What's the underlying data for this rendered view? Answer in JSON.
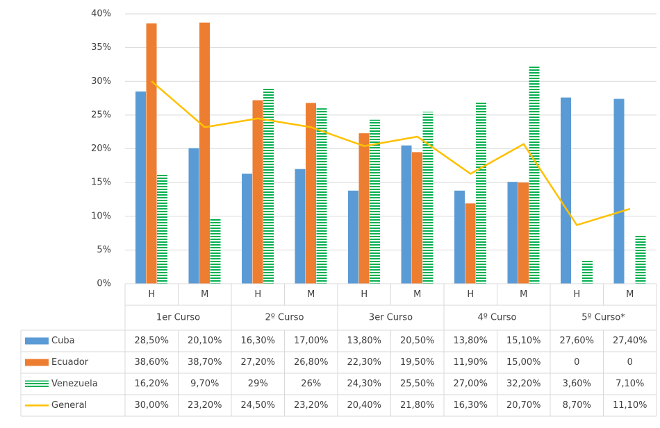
{
  "chart_data": {
    "type": "bar",
    "categories": [
      "H",
      "M",
      "H",
      "M",
      "H",
      "M",
      "H",
      "M",
      "H",
      "M"
    ],
    "groups": [
      "1er Curso",
      "2º Curso",
      "3er Curso",
      "4º Curso",
      "5º Curso*"
    ],
    "series": [
      {
        "name": "Cuba",
        "type": "bar",
        "color": "#5b9bd5",
        "values": [
          28.5,
          20.1,
          16.3,
          17,
          13.8,
          20.5,
          13.8,
          15.1,
          27.6,
          27.4
        ],
        "value_labels": [
          "28,50%",
          "20,10%",
          "16,30%",
          "17,00%",
          "13,80%",
          "20,50%",
          "13,80%",
          "15,10%",
          "27,60%",
          "27,40%"
        ]
      },
      {
        "name": "Ecuador",
        "type": "bar",
        "color": "#ed7d31",
        "values": [
          38.6,
          38.7,
          27.2,
          26.8,
          22.3,
          19.5,
          11.9,
          15,
          0,
          0
        ],
        "value_labels": [
          "38,60%",
          "38,70%",
          "27,20%",
          "26,80%",
          "22,30%",
          "19,50%",
          "11,90%",
          "15,00%",
          "0",
          "0"
        ]
      },
      {
        "name": "Venezuela",
        "type": "bar",
        "color": "#00b050",
        "pattern": "horizontal-stripes",
        "values": [
          16.2,
          9.7,
          29,
          26,
          24.3,
          25.5,
          27,
          32.2,
          3.6,
          7.1
        ],
        "value_labels": [
          "16,20%",
          "9,70%",
          "29%",
          "26%",
          "24,30%",
          "25,50%",
          "27,00%",
          "32,20%",
          "3,60%",
          "7,10%"
        ]
      },
      {
        "name": "General",
        "type": "line",
        "color": "#ffc000",
        "values": [
          30,
          23.2,
          24.5,
          23.2,
          20.4,
          21.8,
          16.3,
          20.7,
          8.7,
          11.1
        ],
        "value_labels": [
          "30,00%",
          "23,20%",
          "24,50%",
          "23,20%",
          "20,40%",
          "21,80%",
          "16,30%",
          "20,70%",
          "8,70%",
          "11,10%"
        ]
      }
    ],
    "ylim": [
      0,
      40
    ],
    "yticks": [
      {
        "value": 0,
        "label": "0%"
      },
      {
        "value": 5,
        "label": "5%"
      },
      {
        "value": 10,
        "label": "10%"
      },
      {
        "value": 15,
        "label": "15%"
      },
      {
        "value": 20,
        "label": "20%"
      },
      {
        "value": 25,
        "label": "25%"
      },
      {
        "value": 30,
        "label": "30%"
      },
      {
        "value": 35,
        "label": "35%"
      },
      {
        "value": 40,
        "label": "40%"
      }
    ],
    "grid": true,
    "legend": "data-table"
  }
}
